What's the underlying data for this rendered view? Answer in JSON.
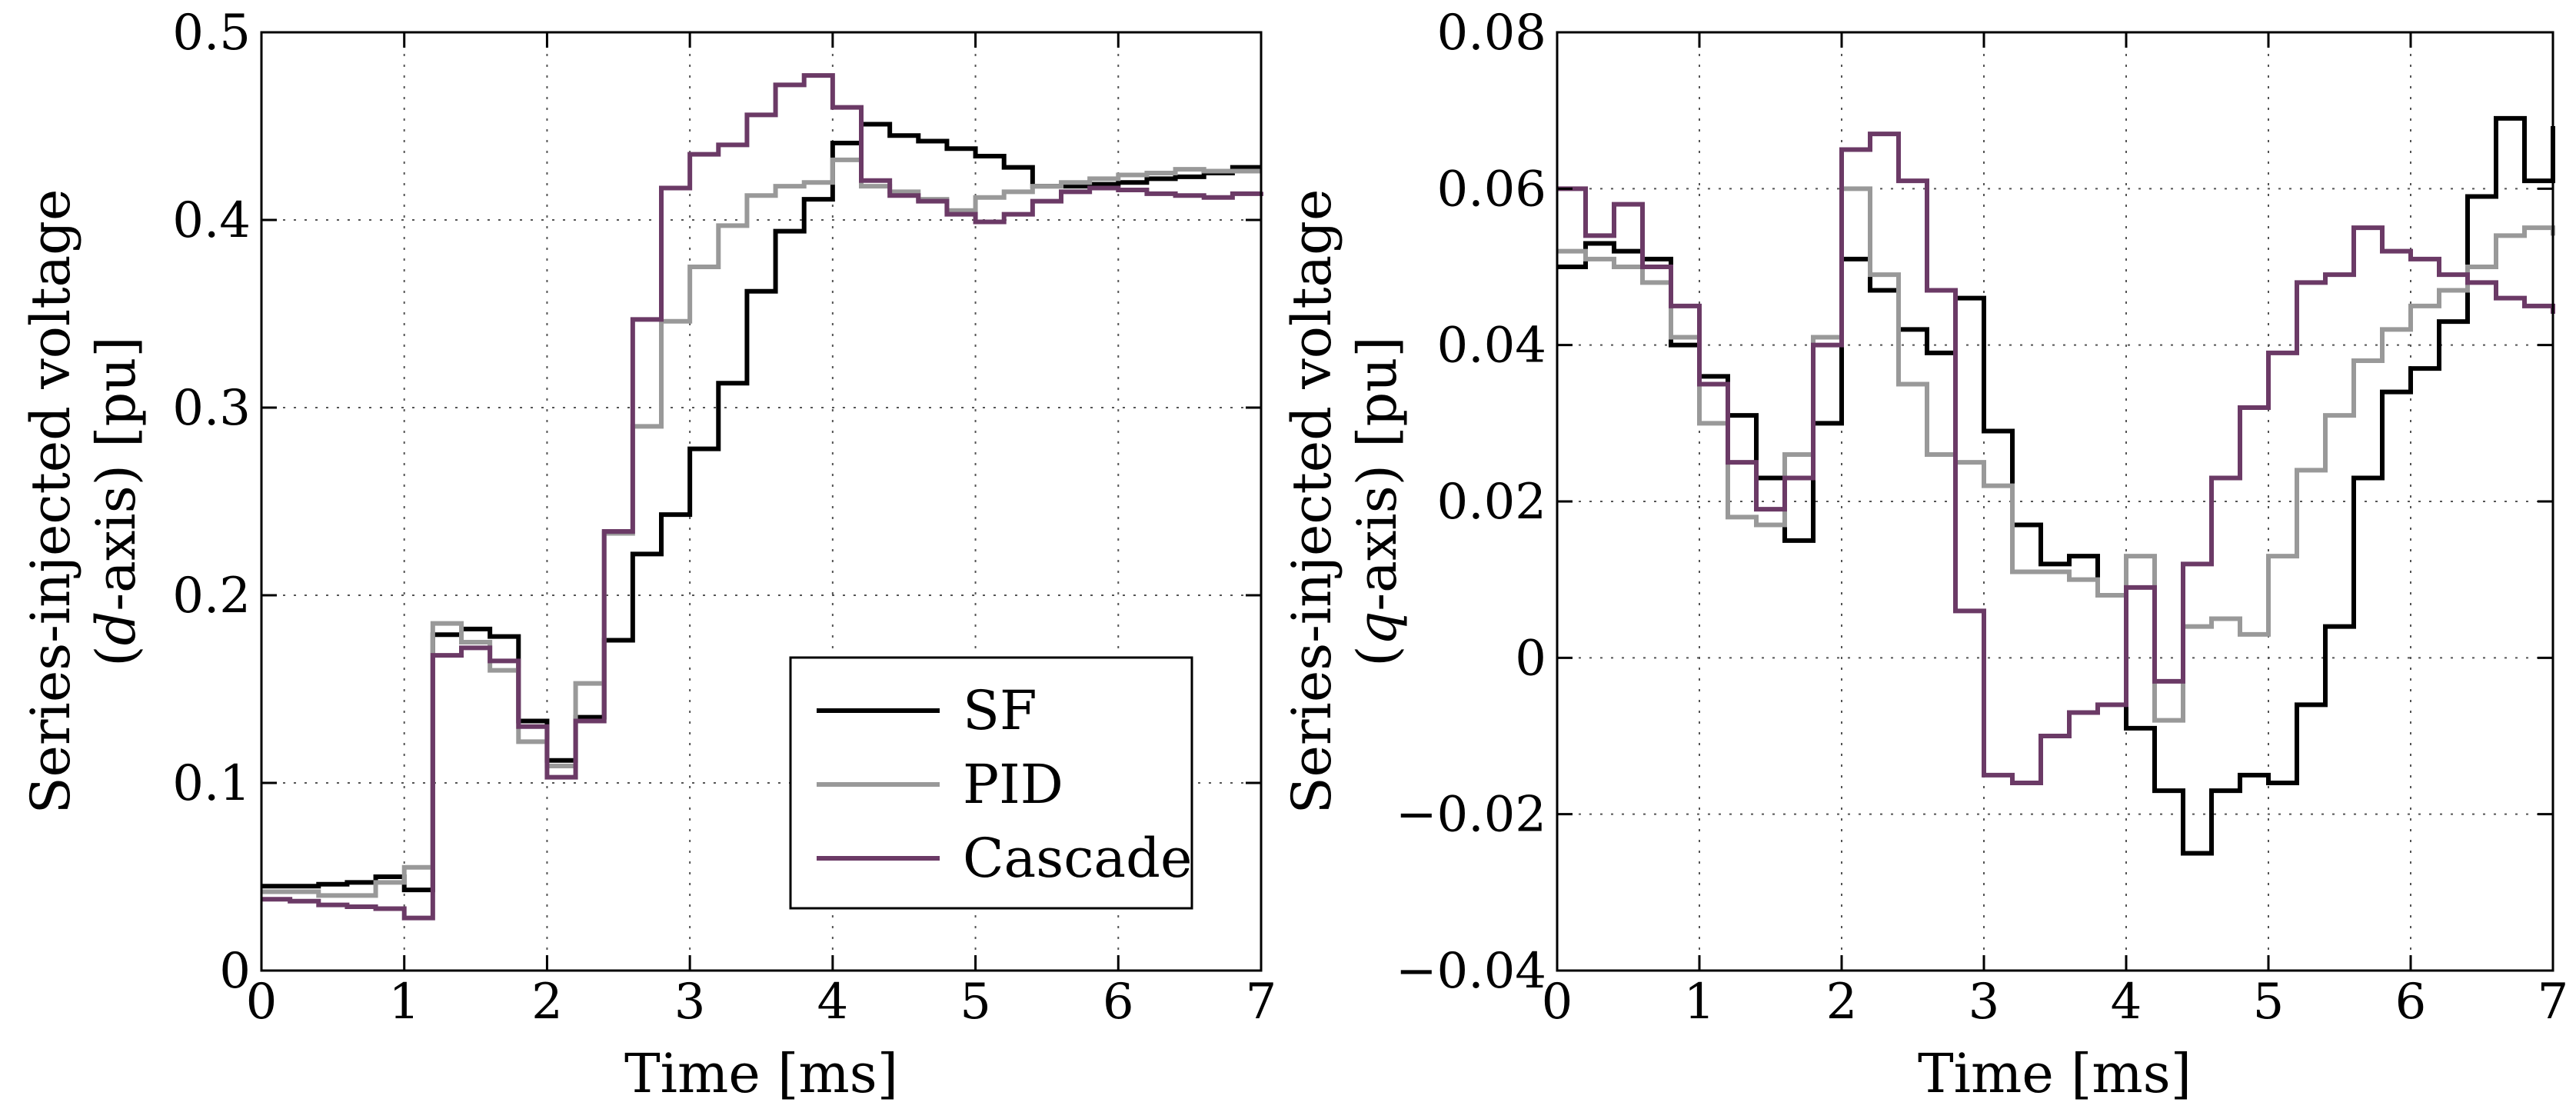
{
  "chart_data": [
    {
      "type": "line",
      "step": true,
      "xlabel": "Time [ms]",
      "ylabel_line1": "Series-injected voltage",
      "ylabel_line2_pre": "(",
      "ylabel_line2_var": "d",
      "ylabel_line2_post": "-axis) [pu]",
      "xlim": [
        0,
        7
      ],
      "ylim": [
        0,
        0.5
      ],
      "xticks": [
        0,
        1,
        2,
        3,
        4,
        5,
        6,
        7
      ],
      "xtick_labels": [
        "0",
        "1",
        "2",
        "3",
        "4",
        "5",
        "6",
        "7"
      ],
      "yticks": [
        0,
        0.1,
        0.2,
        0.3,
        0.4,
        0.5
      ],
      "ytick_labels": [
        "0",
        "0.1",
        "0.2",
        "0.3",
        "0.4",
        "0.5"
      ],
      "grid": true,
      "legend_position": "bottom-right",
      "legend": [
        "SF",
        "PID",
        "Cascade"
      ],
      "series": [
        {
          "name": "SF",
          "color": "#000000",
          "x": [
            0,
            0.2,
            0.4,
            0.6,
            0.8,
            1.0,
            1.2,
            1.4,
            1.6,
            1.8,
            2.0,
            2.2,
            2.4,
            2.6,
            2.8,
            3.0,
            3.2,
            3.4,
            3.6,
            3.8,
            4.0,
            4.2,
            4.4,
            4.6,
            4.8,
            5.0,
            5.2,
            5.4,
            5.6,
            5.8,
            6.0,
            6.2,
            6.4,
            6.6,
            6.8,
            7.0
          ],
          "y": [
            0.045,
            0.045,
            0.046,
            0.047,
            0.05,
            0.043,
            0.179,
            0.182,
            0.178,
            0.133,
            0.112,
            0.135,
            0.176,
            0.222,
            0.243,
            0.278,
            0.313,
            0.362,
            0.394,
            0.411,
            0.441,
            0.451,
            0.445,
            0.442,
            0.438,
            0.434,
            0.428,
            0.418,
            0.418,
            0.419,
            0.42,
            0.422,
            0.423,
            0.425,
            0.428,
            0.428
          ]
        },
        {
          "name": "PID",
          "color": "#999999",
          "x": [
            0,
            0.2,
            0.4,
            0.6,
            0.8,
            1.0,
            1.2,
            1.4,
            1.6,
            1.8,
            2.0,
            2.2,
            2.4,
            2.6,
            2.8,
            3.0,
            3.2,
            3.4,
            3.6,
            3.8,
            4.0,
            4.2,
            4.4,
            4.6,
            4.8,
            5.0,
            5.2,
            5.4,
            5.6,
            5.8,
            6.0,
            6.2,
            6.4,
            6.6,
            6.8,
            7.0
          ],
          "y": [
            0.042,
            0.042,
            0.04,
            0.04,
            0.047,
            0.055,
            0.185,
            0.175,
            0.16,
            0.122,
            0.109,
            0.153,
            0.233,
            0.29,
            0.346,
            0.375,
            0.397,
            0.413,
            0.418,
            0.42,
            0.432,
            0.418,
            0.415,
            0.411,
            0.405,
            0.412,
            0.415,
            0.418,
            0.42,
            0.422,
            0.424,
            0.425,
            0.427,
            0.426,
            0.426,
            0.426
          ]
        },
        {
          "name": "Cascade",
          "color": "#6b3a66",
          "x": [
            0,
            0.2,
            0.4,
            0.6,
            0.8,
            1.0,
            1.2,
            1.4,
            1.6,
            1.8,
            2.0,
            2.2,
            2.4,
            2.6,
            2.8,
            3.0,
            3.2,
            3.4,
            3.6,
            3.8,
            4.0,
            4.2,
            4.4,
            4.6,
            4.8,
            5.0,
            5.2,
            5.4,
            5.6,
            5.8,
            6.0,
            6.2,
            6.4,
            6.6,
            6.8,
            7.0
          ],
          "y": [
            0.038,
            0.037,
            0.035,
            0.034,
            0.033,
            0.028,
            0.168,
            0.172,
            0.165,
            0.13,
            0.103,
            0.133,
            0.234,
            0.347,
            0.417,
            0.435,
            0.44,
            0.456,
            0.472,
            0.477,
            0.46,
            0.421,
            0.413,
            0.41,
            0.403,
            0.399,
            0.403,
            0.41,
            0.415,
            0.417,
            0.416,
            0.414,
            0.413,
            0.412,
            0.414,
            0.415
          ]
        }
      ]
    },
    {
      "type": "line",
      "step": true,
      "xlabel": "Time [ms]",
      "ylabel_line1": "Series-injected voltage",
      "ylabel_line2_pre": "(",
      "ylabel_line2_var": "q",
      "ylabel_line2_post": "-axis) [pu]",
      "xlim": [
        0,
        7
      ],
      "ylim": [
        -0.04,
        0.08
      ],
      "xticks": [
        0,
        1,
        2,
        3,
        4,
        5,
        6,
        7
      ],
      "xtick_labels": [
        "0",
        "1",
        "2",
        "3",
        "4",
        "5",
        "6",
        "7"
      ],
      "yticks": [
        -0.04,
        -0.02,
        0,
        0.02,
        0.04,
        0.06,
        0.08
      ],
      "ytick_labels": [
        "−0.04",
        "−0.02",
        "0",
        "0.02",
        "0.04",
        "0.06",
        "0.08"
      ],
      "grid": true,
      "series": [
        {
          "name": "SF",
          "color": "#000000",
          "x": [
            0,
            0.2,
            0.4,
            0.6,
            0.8,
            1.0,
            1.2,
            1.4,
            1.6,
            1.8,
            2.0,
            2.2,
            2.4,
            2.6,
            2.8,
            3.0,
            3.2,
            3.4,
            3.6,
            3.8,
            4.0,
            4.2,
            4.4,
            4.6,
            4.8,
            5.0,
            5.2,
            5.4,
            5.6,
            5.8,
            6.0,
            6.2,
            6.4,
            6.6,
            6.8,
            7.0
          ],
          "y": [
            0.05,
            0.053,
            0.052,
            0.051,
            0.04,
            0.036,
            0.031,
            0.023,
            0.015,
            0.03,
            0.051,
            0.047,
            0.042,
            0.039,
            0.046,
            0.029,
            0.017,
            0.012,
            0.013,
            0.008,
            -0.009,
            -0.017,
            -0.025,
            -0.017,
            -0.015,
            -0.016,
            -0.006,
            0.004,
            0.023,
            0.034,
            0.037,
            0.043,
            0.059,
            0.069,
            0.061,
            0.068
          ]
        },
        {
          "name": "PID",
          "color": "#999999",
          "x": [
            0,
            0.2,
            0.4,
            0.6,
            0.8,
            1.0,
            1.2,
            1.4,
            1.6,
            1.8,
            2.0,
            2.2,
            2.4,
            2.6,
            2.8,
            3.0,
            3.2,
            3.4,
            3.6,
            3.8,
            4.0,
            4.2,
            4.4,
            4.6,
            4.8,
            5.0,
            5.2,
            5.4,
            5.6,
            5.8,
            6.0,
            6.2,
            6.4,
            6.6,
            6.8,
            7.0
          ],
          "y": [
            0.052,
            0.051,
            0.05,
            0.048,
            0.041,
            0.03,
            0.018,
            0.017,
            0.026,
            0.041,
            0.06,
            0.049,
            0.035,
            0.026,
            0.025,
            0.022,
            0.011,
            0.011,
            0.01,
            0.008,
            0.013,
            -0.008,
            0.004,
            0.005,
            0.003,
            0.013,
            0.024,
            0.031,
            0.038,
            0.042,
            0.045,
            0.047,
            0.05,
            0.054,
            0.055,
            0.054
          ]
        },
        {
          "name": "Cascade",
          "color": "#6b3a66",
          "x": [
            0,
            0.2,
            0.4,
            0.6,
            0.8,
            1.0,
            1.2,
            1.4,
            1.6,
            1.8,
            2.0,
            2.2,
            2.4,
            2.6,
            2.8,
            3.0,
            3.2,
            3.4,
            3.6,
            3.8,
            4.0,
            4.2,
            4.4,
            4.6,
            4.8,
            5.0,
            5.2,
            5.4,
            5.6,
            5.8,
            6.0,
            6.2,
            6.4,
            6.6,
            6.8,
            7.0
          ],
          "y": [
            0.06,
            0.054,
            0.058,
            0.05,
            0.045,
            0.035,
            0.025,
            0.019,
            0.023,
            0.04,
            0.065,
            0.067,
            0.061,
            0.047,
            0.006,
            -0.015,
            -0.016,
            -0.01,
            -0.007,
            -0.006,
            0.009,
            -0.003,
            0.012,
            0.023,
            0.032,
            0.039,
            0.048,
            0.049,
            0.055,
            0.052,
            0.051,
            0.049,
            0.048,
            0.046,
            0.045,
            0.044
          ]
        }
      ]
    }
  ]
}
